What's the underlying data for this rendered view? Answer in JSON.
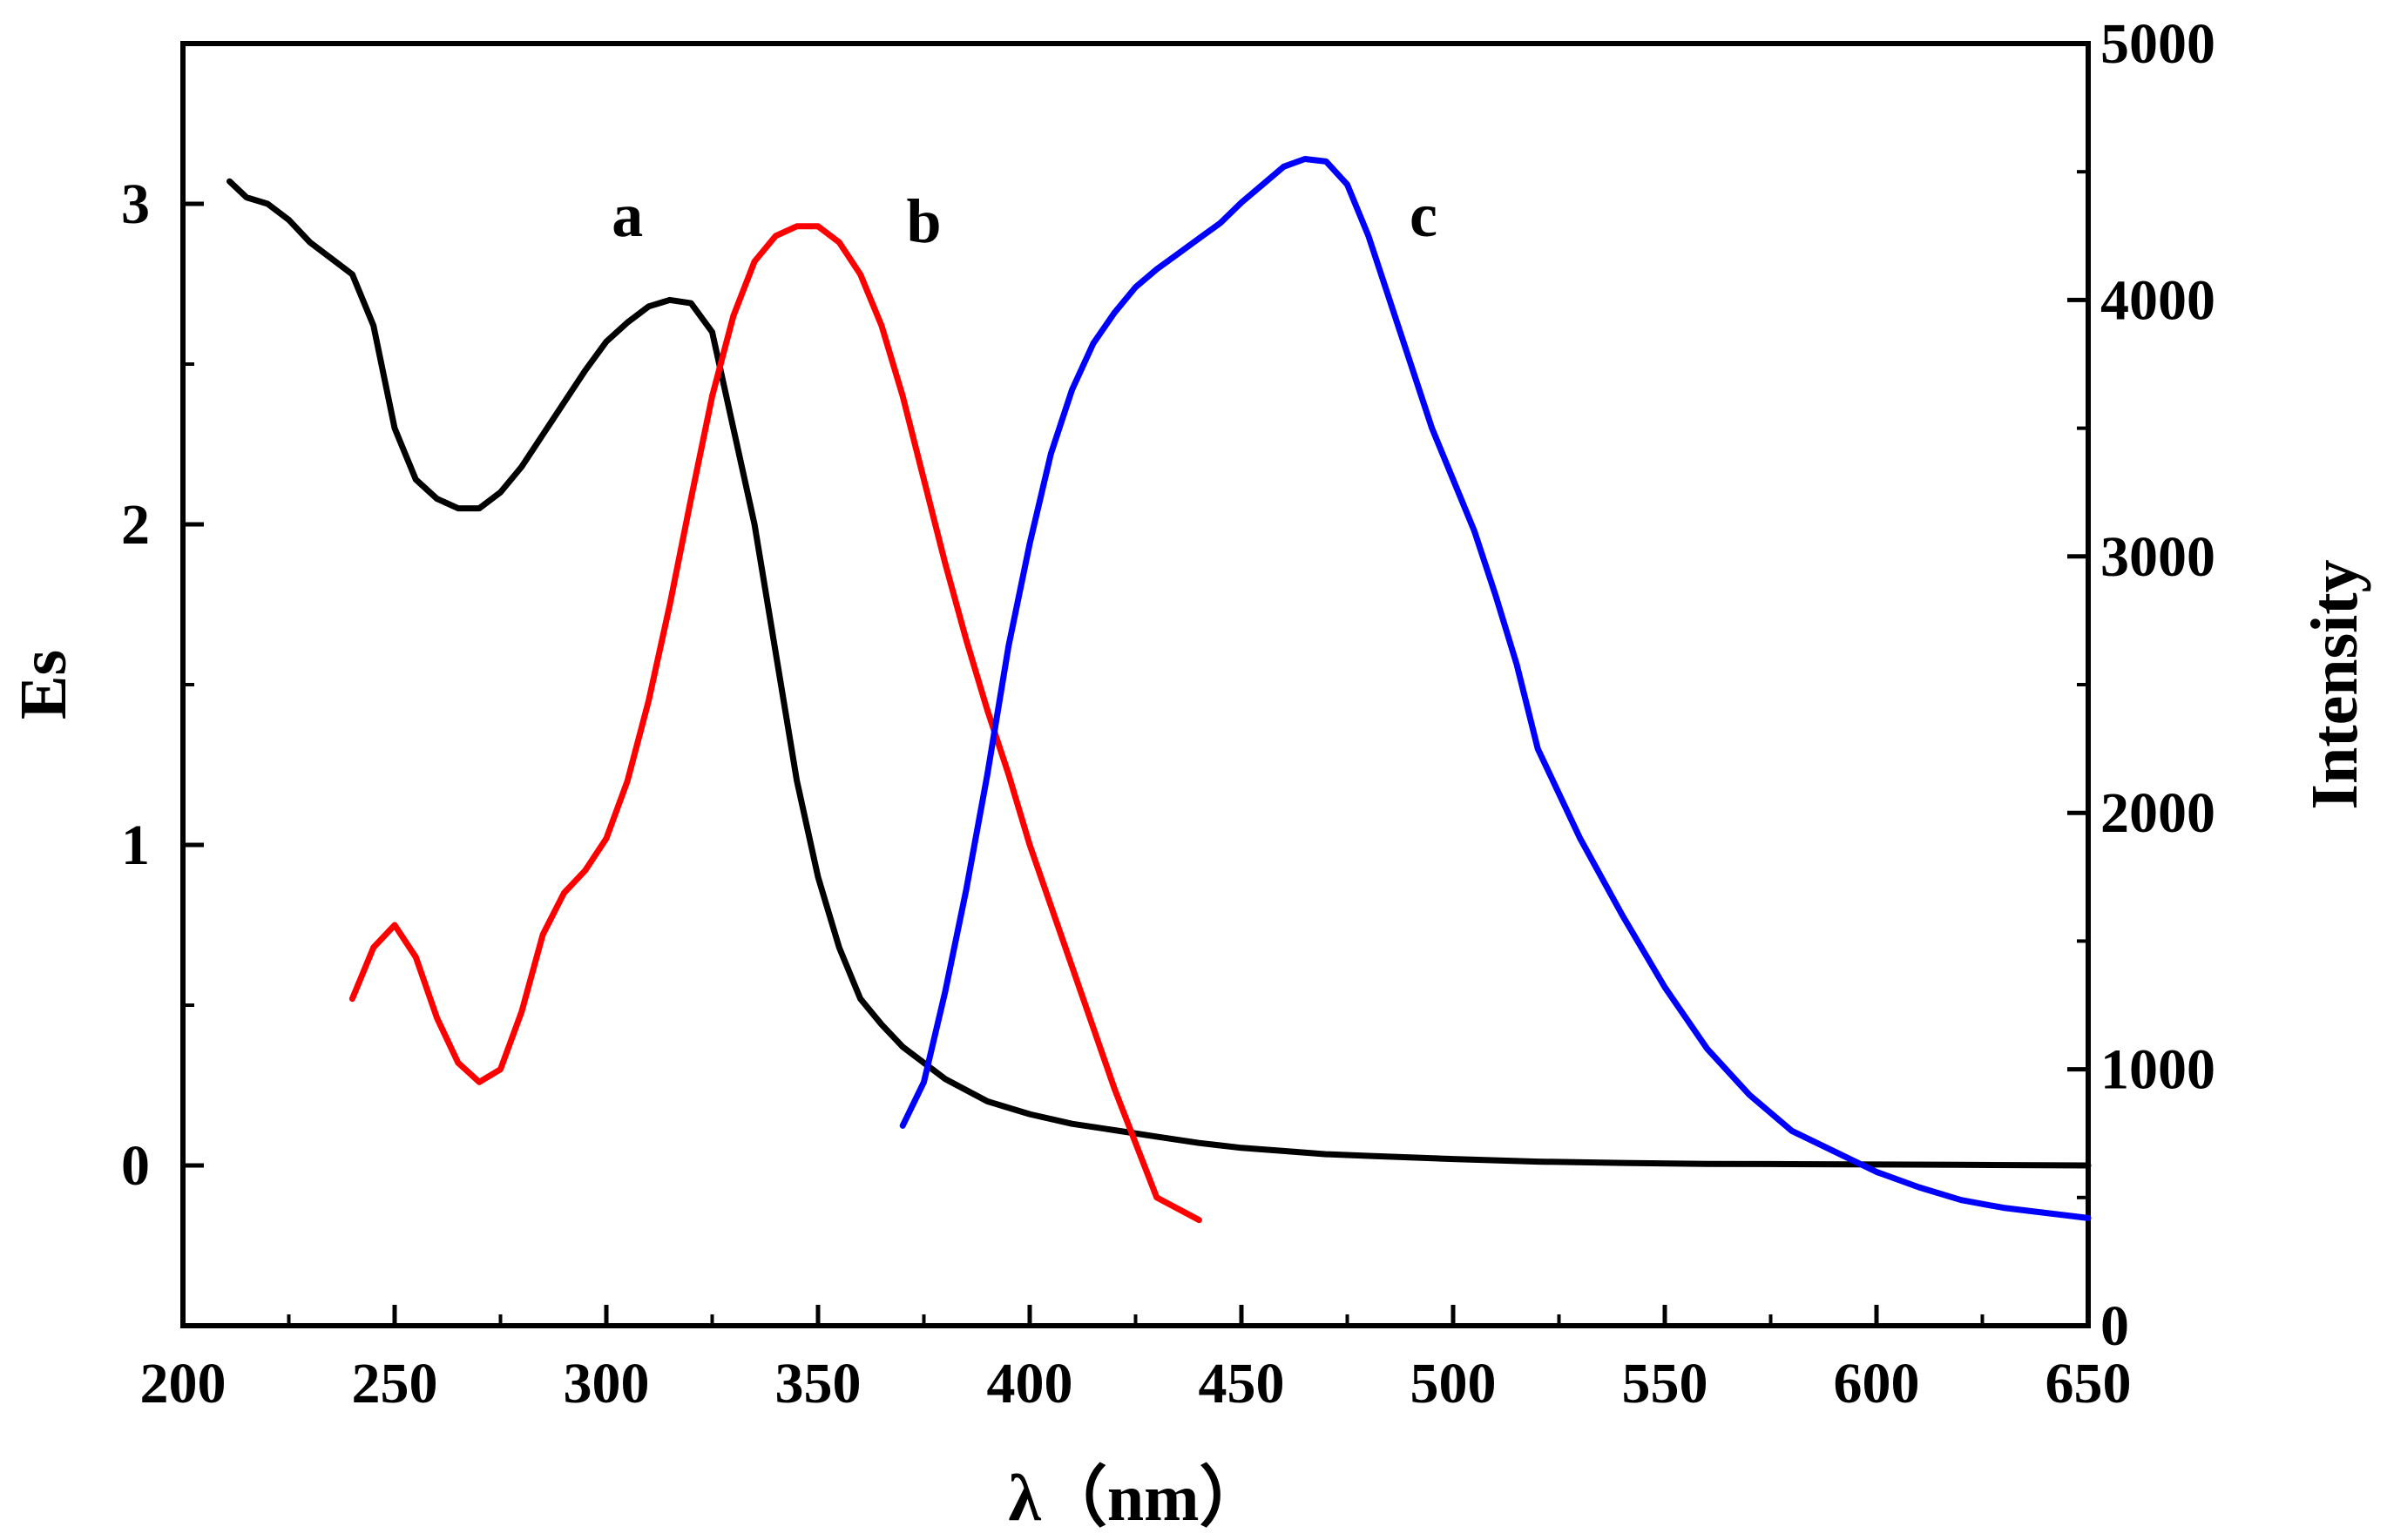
{
  "chart_data": {
    "type": "line",
    "title": "",
    "xlabel": "λ（nm）",
    "ylabel_left": "Es",
    "ylabel_right": "Intensity",
    "xlim": [
      200,
      650
    ],
    "ylim_left": [
      -0.5,
      3.5
    ],
    "ylim_right": [
      0,
      5000
    ],
    "x_ticks": [
      200,
      250,
      300,
      350,
      400,
      450,
      500,
      550,
      600,
      650
    ],
    "y_left_ticks": [
      0,
      1,
      2,
      3
    ],
    "y_right_ticks": [
      0,
      1000,
      2000,
      3000,
      4000,
      5000
    ],
    "grid": false,
    "series": [
      {
        "name": "a",
        "axis": "left",
        "color": "#000000",
        "x": [
          211,
          215,
          220,
          225,
          230,
          235,
          240,
          245,
          250,
          255,
          260,
          265,
          270,
          275,
          280,
          285,
          290,
          295,
          300,
          305,
          310,
          315,
          320,
          325,
          330,
          335,
          340,
          345,
          350,
          355,
          360,
          365,
          370,
          380,
          390,
          400,
          410,
          420,
          430,
          440,
          450,
          460,
          470,
          480,
          500,
          520,
          540,
          560,
          580,
          600,
          620,
          650
        ],
        "y": [
          3.07,
          3.02,
          3.0,
          2.95,
          2.88,
          2.83,
          2.78,
          2.62,
          2.3,
          2.14,
          2.08,
          2.05,
          2.05,
          2.1,
          2.18,
          2.28,
          2.38,
          2.48,
          2.57,
          2.63,
          2.68,
          2.7,
          2.69,
          2.6,
          2.3,
          2.0,
          1.6,
          1.2,
          0.9,
          0.68,
          0.52,
          0.44,
          0.37,
          0.27,
          0.2,
          0.16,
          0.13,
          0.11,
          0.09,
          0.07,
          0.055,
          0.045,
          0.035,
          0.03,
          0.02,
          0.012,
          0.008,
          0.005,
          0.004,
          0.003,
          0.002,
          0.0
        ]
      },
      {
        "name": "b",
        "axis": "left",
        "color": "#ff0000",
        "x": [
          240,
          245,
          250,
          255,
          260,
          265,
          270,
          275,
          280,
          285,
          290,
          295,
          300,
          305,
          310,
          315,
          320,
          325,
          330,
          335,
          340,
          345,
          350,
          355,
          360,
          365,
          370,
          375,
          380,
          385,
          390,
          395,
          400,
          410,
          420,
          430,
          440
        ],
        "y": [
          0.52,
          0.68,
          0.75,
          0.65,
          0.46,
          0.32,
          0.26,
          0.3,
          0.48,
          0.72,
          0.85,
          0.92,
          1.02,
          1.2,
          1.45,
          1.75,
          2.08,
          2.4,
          2.65,
          2.82,
          2.9,
          2.93,
          2.93,
          2.88,
          2.78,
          2.62,
          2.4,
          2.14,
          1.88,
          1.64,
          1.42,
          1.22,
          1.0,
          0.62,
          0.24,
          -0.1,
          -0.17
        ]
      },
      {
        "name": "c",
        "axis": "right",
        "color": "#0000ff",
        "x": [
          370,
          375,
          380,
          385,
          390,
          395,
          400,
          405,
          410,
          415,
          420,
          425,
          430,
          435,
          440,
          445,
          450,
          455,
          460,
          465,
          470,
          475,
          480,
          485,
          490,
          495,
          500,
          505,
          510,
          515,
          520,
          530,
          540,
          550,
          560,
          570,
          580,
          590,
          600,
          610,
          620,
          630,
          640,
          650
        ],
        "y": [
          780,
          950,
          1300,
          1700,
          2150,
          2650,
          3050,
          3400,
          3650,
          3830,
          3950,
          4050,
          4120,
          4180,
          4240,
          4300,
          4380,
          4450,
          4520,
          4550,
          4540,
          4450,
          4250,
          4000,
          3750,
          3500,
          3300,
          3100,
          2850,
          2580,
          2250,
          1900,
          1600,
          1320,
          1080,
          900,
          760,
          680,
          600,
          540,
          490,
          460,
          440,
          420
        ]
      }
    ],
    "curve_labels": [
      {
        "text": "a",
        "x": 305,
        "y_left": 2.9
      },
      {
        "text": "b",
        "x": 375,
        "y_left": 2.88
      },
      {
        "text": "c",
        "x": 493,
        "y_left": 2.9
      }
    ]
  }
}
